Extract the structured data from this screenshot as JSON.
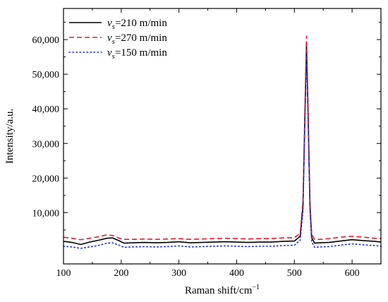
{
  "chart_data": {
    "type": "line",
    "xlabel": "Raman shift/cm",
    "xlabel_sup": "−1",
    "ylabel": "Intensity/a.u.",
    "xlim": [
      100,
      650
    ],
    "ylim": [
      -4800,
      69000
    ],
    "xticks": [
      100,
      200,
      300,
      400,
      500,
      600
    ],
    "xtick_labels": [
      "100",
      "200",
      "300",
      "400",
      "500",
      "600"
    ],
    "yticks": [
      10000,
      20000,
      30000,
      40000,
      50000,
      60000
    ],
    "ytick_labels": [
      "10,000",
      "20,000",
      "30,000",
      "40,000",
      "50,000",
      "60,000"
    ],
    "grid": false,
    "legend_position": "top-left",
    "series": [
      {
        "name_sym": "v",
        "name_sub": "s",
        "name_rest": "=210 m/min",
        "color": "#000000",
        "dash": "solid",
        "x": [
          100,
          115,
          130,
          145,
          160,
          175,
          185,
          195,
          205,
          220,
          240,
          260,
          280,
          300,
          320,
          340,
          360,
          380,
          400,
          420,
          440,
          460,
          480,
          500,
          510,
          515,
          518,
          521,
          524,
          527,
          530,
          535,
          545,
          560,
          580,
          600,
          620,
          640,
          650
        ],
        "y": [
          1700,
          1400,
          800,
          1500,
          2000,
          2600,
          2700,
          2000,
          1200,
          1300,
          1400,
          1300,
          1400,
          1600,
          1300,
          1400,
          1500,
          1600,
          1500,
          1400,
          1500,
          1500,
          1700,
          1800,
          3200,
          12000,
          36000,
          58500,
          37000,
          12000,
          2800,
          1200,
          1300,
          1400,
          1800,
          2200,
          1900,
          1700,
          1500
        ]
      },
      {
        "name_sym": "v",
        "name_sub": "s",
        "name_rest": "=270 m/min",
        "color": "#e8192c",
        "dash": "dashed",
        "x": [
          100,
          115,
          130,
          145,
          160,
          175,
          185,
          195,
          205,
          220,
          240,
          260,
          280,
          300,
          320,
          340,
          360,
          380,
          400,
          420,
          440,
          460,
          480,
          500,
          510,
          515,
          518,
          521,
          524,
          527,
          530,
          535,
          545,
          560,
          580,
          600,
          620,
          640,
          650
        ],
        "y": [
          2900,
          2600,
          2200,
          2600,
          3000,
          3600,
          3400,
          2700,
          2300,
          2300,
          2400,
          2300,
          2400,
          2500,
          2300,
          2400,
          2500,
          2600,
          2500,
          2400,
          2500,
          2500,
          2700,
          2800,
          4000,
          13500,
          38000,
          61000,
          39000,
          13000,
          3800,
          2300,
          2300,
          2500,
          2900,
          3200,
          2900,
          2600,
          2500
        ]
      },
      {
        "name_sym": "v",
        "name_sub": "s",
        "name_rest": "=150 m/min",
        "color": "#1f2fd6",
        "dash": "dotted",
        "x": [
          100,
          115,
          130,
          145,
          160,
          175,
          185,
          195,
          205,
          220,
          240,
          260,
          280,
          300,
          320,
          340,
          360,
          380,
          400,
          420,
          440,
          460,
          480,
          500,
          510,
          515,
          518,
          521,
          524,
          527,
          530,
          535,
          545,
          560,
          580,
          600,
          620,
          640,
          650
        ],
        "y": [
          300,
          100,
          -300,
          100,
          500,
          1200,
          1300,
          700,
          0,
          100,
          200,
          100,
          200,
          400,
          100,
          200,
          300,
          400,
          300,
          200,
          300,
          300,
          500,
          600,
          2000,
          10500,
          34000,
          56500,
          35000,
          10500,
          1600,
          0,
          100,
          200,
          600,
          1000,
          700,
          500,
          300
        ]
      }
    ]
  }
}
